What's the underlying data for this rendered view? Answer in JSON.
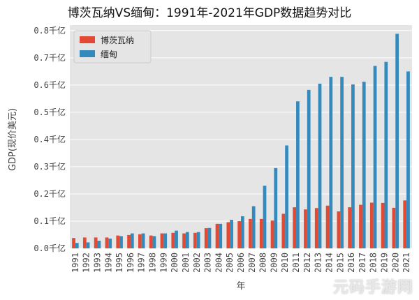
{
  "chart_data": {
    "type": "bar",
    "title": "博茨瓦纳VS缅甸：1991年-2021年GDP数据趋势对比",
    "xlabel": "年",
    "ylabel": "GDP(现价美元)",
    "categories": [
      "1991",
      "1992",
      "1993",
      "1994",
      "1995",
      "1996",
      "1997",
      "1998",
      "1999",
      "2000",
      "2001",
      "2002",
      "2003",
      "2004",
      "2005",
      "2006",
      "2007",
      "2008",
      "2009",
      "2010",
      "2011",
      "2012",
      "2013",
      "2014",
      "2015",
      "2016",
      "2017",
      "2018",
      "2019",
      "2020",
      "2021"
    ],
    "series": [
      {
        "name": "博茨瓦纳",
        "color": "#e24a33",
        "values": [
          0.038,
          0.04,
          0.04,
          0.04,
          0.047,
          0.049,
          0.052,
          0.047,
          0.055,
          0.057,
          0.055,
          0.057,
          0.074,
          0.09,
          0.096,
          0.1,
          0.108,
          0.108,
          0.102,
          0.127,
          0.151,
          0.143,
          0.148,
          0.157,
          0.136,
          0.151,
          0.16,
          0.168,
          0.167,
          0.149,
          0.176
        ]
      },
      {
        "name": "缅甸",
        "color": "#348abd",
        "values": [
          0.02,
          0.022,
          0.028,
          0.036,
          0.045,
          0.055,
          0.055,
          0.045,
          0.055,
          0.065,
          0.06,
          0.06,
          0.075,
          0.09,
          0.105,
          0.118,
          0.155,
          0.23,
          0.295,
          0.378,
          0.54,
          0.582,
          0.605,
          0.63,
          0.63,
          0.602,
          0.612,
          0.67,
          0.685,
          0.788,
          0.65
        ]
      }
    ],
    "ylim": [
      0,
      0.82
    ],
    "yticks": [
      0.0,
      0.1,
      0.2,
      0.3,
      0.4,
      0.5,
      0.6,
      0.7,
      0.8
    ],
    "ytick_labels": [
      "0.0千亿",
      "0.1千亿",
      "0.2千亿",
      "0.3千亿",
      "0.4千亿",
      "0.5千亿",
      "0.6千亿",
      "0.7千亿",
      "0.8千亿"
    ],
    "legend_position": "top-left",
    "grid": true,
    "background": "#e5e5e5"
  },
  "watermark": "元码手游网"
}
